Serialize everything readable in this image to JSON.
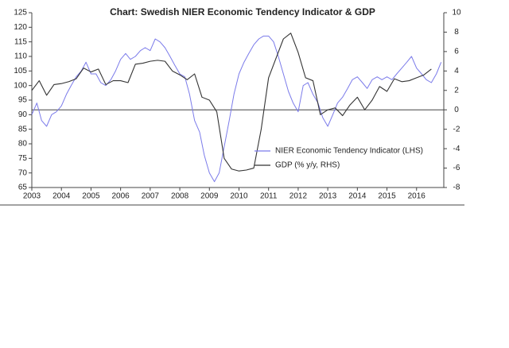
{
  "chart_data": {
    "type": "line",
    "title": "Chart: Swedish NIER Economic Tendency Indicator & GDP",
    "xlim": [
      2003,
      2016.92
    ],
    "xticks": [
      2003,
      2004,
      2005,
      2006,
      2007,
      2008,
      2009,
      2010,
      2011,
      2012,
      2013,
      2014,
      2015,
      2016
    ],
    "ylim": [
      65,
      125
    ],
    "yticks": [
      65,
      70,
      75,
      80,
      85,
      90,
      95,
      100,
      105,
      110,
      115,
      120,
      125
    ],
    "y2lim": [
      -8,
      10
    ],
    "y2ticks": [
      -8,
      -6,
      -4,
      -2,
      0,
      2,
      4,
      6,
      8,
      10
    ],
    "series": [
      {
        "name": "NIER Economic Tendency Indicator (LHS)",
        "color": "#7b7bea",
        "x": [
          2003,
          2003.17,
          2003.33,
          2003.5,
          2003.67,
          2003.83,
          2004,
          2004.17,
          2004.33,
          2004.5,
          2004.67,
          2004.83,
          2005,
          2005.17,
          2005.33,
          2005.5,
          2005.67,
          2005.83,
          2006,
          2006.17,
          2006.33,
          2006.5,
          2006.67,
          2006.83,
          2007,
          2007.17,
          2007.33,
          2007.5,
          2007.67,
          2007.83,
          2008,
          2008.17,
          2008.33,
          2008.5,
          2008.67,
          2008.83,
          2009,
          2009.17,
          2009.33,
          2009.5,
          2009.67,
          2009.83,
          2010,
          2010.17,
          2010.33,
          2010.5,
          2010.67,
          2010.83,
          2011,
          2011.17,
          2011.33,
          2011.5,
          2011.67,
          2011.83,
          2012,
          2012.17,
          2012.33,
          2012.5,
          2012.67,
          2012.83,
          2013,
          2013.17,
          2013.33,
          2013.5,
          2013.67,
          2013.83,
          2014,
          2014.17,
          2014.33,
          2014.5,
          2014.67,
          2014.83,
          2015,
          2015.17,
          2015.33,
          2015.5,
          2015.67,
          2015.83,
          2016,
          2016.17,
          2016.33,
          2016.5,
          2016.67,
          2016.83
        ],
        "values": [
          90,
          94,
          88,
          86,
          90,
          91,
          93,
          97,
          100,
          103,
          105,
          108,
          104,
          104,
          101,
          100,
          102,
          105,
          109,
          111,
          109,
          110,
          112,
          113,
          112,
          116,
          115,
          113,
          110,
          107,
          104,
          103,
          97,
          88,
          84,
          76,
          70,
          67,
          70,
          79,
          88,
          97,
          104,
          108,
          111,
          114,
          116,
          117,
          117,
          115,
          110,
          104,
          98,
          94,
          91,
          100,
          101,
          97,
          94,
          89,
          86,
          90,
          94,
          96,
          99,
          102,
          103,
          101,
          99,
          102,
          103,
          102,
          103,
          102,
          104,
          106,
          108,
          110,
          106,
          104,
          102,
          101,
          104,
          108
        ]
      },
      {
        "name": "GDP (% y/y, RHS)",
        "color": "#333333",
        "axis": "y2",
        "x": [
          2003,
          2003.25,
          2003.5,
          2003.75,
          2004,
          2004.25,
          2004.5,
          2004.75,
          2005,
          2005.25,
          2005.5,
          2005.75,
          2006,
          2006.25,
          2006.5,
          2006.75,
          2007,
          2007.25,
          2007.5,
          2007.75,
          2008,
          2008.25,
          2008.5,
          2008.75,
          2009,
          2009.25,
          2009.5,
          2009.75,
          2010,
          2010.25,
          2010.5,
          2010.75,
          2011,
          2011.25,
          2011.5,
          2011.75,
          2012,
          2012.25,
          2012.5,
          2012.75,
          2013,
          2013.25,
          2013.5,
          2013.75,
          2014,
          2014.25,
          2014.5,
          2014.75,
          2015,
          2015.25,
          2015.5,
          2015.75,
          2016,
          2016.25,
          2016.5
        ],
        "values": [
          2.0,
          3.0,
          1.5,
          2.6,
          2.7,
          2.9,
          3.2,
          4.3,
          3.9,
          4.2,
          2.6,
          3.0,
          3.0,
          2.8,
          4.7,
          4.8,
          5.0,
          5.1,
          5.0,
          4.0,
          3.6,
          3.1,
          3.7,
          1.3,
          1.0,
          -0.2,
          -5.0,
          -6.1,
          -6.3,
          -6.2,
          -6.0,
          -2.0,
          3.3,
          5.3,
          7.3,
          7.9,
          5.9,
          3.3,
          3.0,
          -0.5,
          0.0,
          0.2,
          -0.6,
          0.5,
          1.3,
          0.0,
          1.0,
          2.4,
          1.9,
          3.2,
          2.9,
          3.0,
          3.3,
          3.6,
          4.2
        ]
      }
    ]
  }
}
